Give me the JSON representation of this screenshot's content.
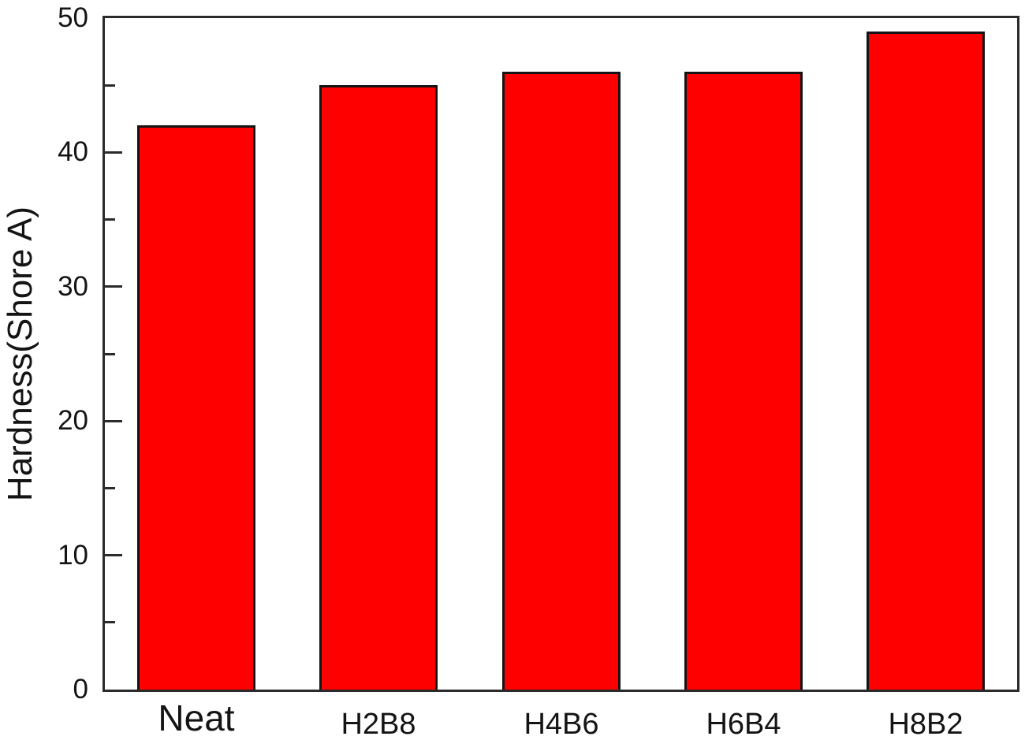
{
  "chart_data": {
    "type": "bar",
    "categories": [
      "Neat",
      "H2B8",
      "H4B6",
      "H6B4",
      "H8B2"
    ],
    "values": [
      42,
      45,
      46,
      46,
      49
    ],
    "title": "",
    "xlabel": "",
    "ylabel": "Hardness(Shore A)",
    "ylim": [
      0,
      50
    ],
    "y_major_ticks": [
      0,
      10,
      20,
      30,
      40,
      50
    ],
    "y_minor_ticks": [
      5,
      15,
      25,
      35,
      45
    ],
    "grid": false,
    "legend": "none",
    "bar_color": "#ff0000",
    "bar_border_color": "#141414",
    "axis_color": "#2b2b2b",
    "text_color": "#141414"
  }
}
